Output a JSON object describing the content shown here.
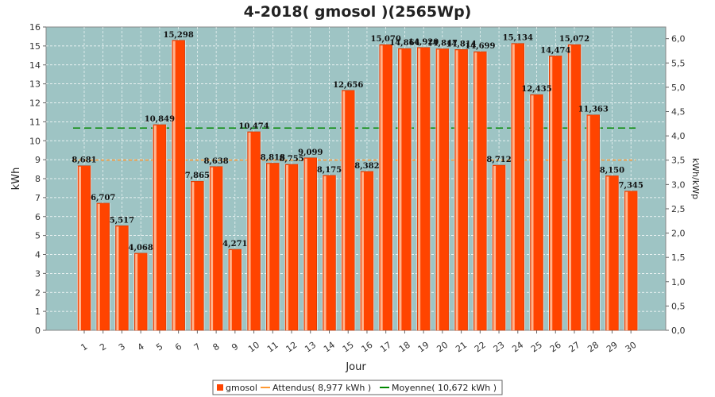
{
  "chart_data": {
    "type": "bar",
    "title": "4-2018( gmosol )(2565Wp)",
    "xlabel": "Jour",
    "ylabel": "kWh",
    "y2label": "kWh/kWp",
    "ylim": [
      0,
      16
    ],
    "y2lim": [
      0,
      6.24
    ],
    "y_ticks": [
      "0",
      "1",
      "2",
      "3",
      "4",
      "5",
      "6",
      "7",
      "8",
      "9",
      "10",
      "11",
      "12",
      "13",
      "14",
      "15",
      "16"
    ],
    "y2_ticks": [
      "0,0",
      "0,5",
      "1,0",
      "1,5",
      "2,0",
      "2,5",
      "3,0",
      "3,5",
      "4,0",
      "4,5",
      "5,0",
      "5,5",
      "6,0"
    ],
    "categories": [
      "1",
      "2",
      "3",
      "4",
      "5",
      "6",
      "7",
      "8",
      "9",
      "10",
      "11",
      "12",
      "13",
      "14",
      "15",
      "16",
      "17",
      "18",
      "19",
      "20",
      "21",
      "22",
      "23",
      "24",
      "25",
      "26",
      "27",
      "28",
      "29",
      "30"
    ],
    "series": [
      {
        "name": "gmosol",
        "color": "#ff4400",
        "values": [
          8.681,
          6.707,
          5.517,
          4.068,
          10.849,
          15.298,
          7.865,
          8.638,
          4.271,
          10.474,
          8.818,
          8.755,
          9.099,
          8.175,
          12.656,
          8.382,
          15.07,
          14.864,
          14.92,
          14.847,
          14.814,
          14.699,
          8.712,
          15.134,
          12.435,
          14.474,
          15.072,
          11.363,
          8.15,
          7.345
        ],
        "labels": [
          "8,681",
          "6,707",
          "5,517",
          "4,068",
          "10,849",
          "15,298",
          "7,865",
          "8,638",
          "4,271",
          "10,474",
          "8,818",
          "8,755",
          "9,099",
          "8,175",
          "12,656",
          "8,382",
          "15,070",
          "14,864",
          "14,920",
          "14,847",
          "14,814",
          "14,699",
          "8,712",
          "15,134",
          "12,435",
          "14,474",
          "15,072",
          "11,363",
          "8,150",
          "7,345"
        ]
      }
    ],
    "reference_lines": [
      {
        "name": "Attendus( 8,977 kWh )",
        "value": 8.977,
        "color": "#ff9933",
        "style": "dashed"
      },
      {
        "name": "Moyenne( 10,672 kWh )",
        "value": 10.672,
        "color": "#008800",
        "style": "dashed"
      }
    ],
    "legend": {
      "placement": "bottom-center",
      "entries": [
        "gmosol",
        "Attendus( 8,977 kWh )",
        "Moyenne( 10,672 kWh )"
      ]
    },
    "colors": {
      "plot_background": "#9ec4c4",
      "grid": "#ffffff",
      "bar": "#ff4400"
    },
    "grid": true
  }
}
